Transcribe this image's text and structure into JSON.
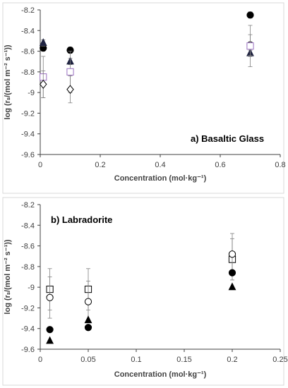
{
  "chart_data": [
    {
      "type": "scatter",
      "panel_label": "a) Basaltic Glass",
      "xlabel": "Concentration (mol·kg⁻¹)",
      "ylabel": "log (rₛ/(mol m⁻² s⁻¹))",
      "xlim": [
        0,
        0.8
      ],
      "ylim": [
        -9.6,
        -8.2
      ],
      "x_ticks": [
        0,
        0.2,
        0.4,
        0.6,
        0.8
      ],
      "x_tick_labels": [
        "0",
        "0.2",
        "0.4",
        "0.6",
        "0.8"
      ],
      "y_ticks": [
        -9.6,
        -9.4,
        -9.2,
        -9.0,
        -8.8,
        -8.6,
        -8.4,
        -8.2
      ],
      "y_tick_labels": [
        "-9.6",
        "-9.4",
        "-9.2",
        "-9",
        "-8.8",
        "-8.6",
        "-8.4",
        "-8.2"
      ],
      "grid": false,
      "legend": "none",
      "series": [
        {
          "marker": "filled-circle",
          "color": "#000000",
          "points": [
            {
              "x": 0.01,
              "y": -8.57,
              "err": 0.03
            },
            {
              "x": 0.1,
              "y": -8.59,
              "err": 0.03
            },
            {
              "x": 0.7,
              "y": -8.25,
              "err": 0.03
            }
          ]
        },
        {
          "marker": "filled-triangle",
          "color": "#1f2340",
          "points": [
            {
              "x": 0.01,
              "y": -8.52,
              "err": 0.03
            },
            {
              "x": 0.1,
              "y": -8.7,
              "err": 0.03
            },
            {
              "x": 0.7,
              "y": -8.62,
              "err": 0.03
            }
          ]
        },
        {
          "marker": "open-circle",
          "color": "#000000",
          "points": [
            {
              "x": 0.7,
              "y": -8.54,
              "err": 0.1
            }
          ]
        },
        {
          "marker": "open-square",
          "color": "#9a70c0",
          "points": [
            {
              "x": 0.01,
              "y": -8.85,
              "err": 0.2
            },
            {
              "x": 0.1,
              "y": -8.8,
              "err": 0.2
            },
            {
              "x": 0.7,
              "y": -8.55,
              "err": 0.2
            }
          ]
        },
        {
          "marker": "open-diamond",
          "color": "#000000",
          "points": [
            {
              "x": 0.01,
              "y": -8.92,
              "err": 0.13
            },
            {
              "x": 0.1,
              "y": -8.97,
              "err": 0.13
            }
          ]
        }
      ]
    },
    {
      "type": "scatter",
      "panel_label": "b) Labradorite",
      "xlabel": "Concentration (mol·kg⁻¹)",
      "ylabel": "log (rₛ/(mol m⁻² s⁻¹))",
      "xlim": [
        0,
        0.25
      ],
      "ylim": [
        -9.6,
        -8.2
      ],
      "x_ticks": [
        0,
        0.05,
        0.1,
        0.15,
        0.2,
        0.25
      ],
      "x_tick_labels": [
        "0",
        "0.05",
        "0.1",
        "0.15",
        "0.2",
        "0.25"
      ],
      "y_ticks": [
        -9.6,
        -9.4,
        -9.2,
        -9.0,
        -8.8,
        -8.6,
        -8.4,
        -8.2
      ],
      "y_tick_labels": [
        "-9.6",
        "-9.4",
        "-9.2",
        "-9",
        "-8.8",
        "-8.6",
        "-8.4",
        "-8.2"
      ],
      "grid": false,
      "legend": "none",
      "series": [
        {
          "marker": "open-square",
          "color": "#000000",
          "points": [
            {
              "x": 0.01,
              "y": -9.02,
              "err": 0.2
            },
            {
              "x": 0.05,
              "y": -9.02,
              "err": 0.2
            },
            {
              "x": 0.2,
              "y": -8.73,
              "err": 0.2
            }
          ]
        },
        {
          "marker": "open-circle",
          "color": "#000000",
          "points": [
            {
              "x": 0.01,
              "y": -9.1,
              "err": 0.2
            },
            {
              "x": 0.05,
              "y": -9.14,
              "err": 0.2
            },
            {
              "x": 0.2,
              "y": -8.68,
              "err": 0.2
            }
          ]
        },
        {
          "marker": "filled-circle",
          "color": "#000000",
          "points": [
            {
              "x": 0.01,
              "y": -9.41,
              "err": 0.0
            },
            {
              "x": 0.05,
              "y": -9.39,
              "err": 0.0
            },
            {
              "x": 0.2,
              "y": -8.86,
              "err": 0.0
            }
          ]
        },
        {
          "marker": "filled-triangle",
          "color": "#000000",
          "points": [
            {
              "x": 0.01,
              "y": -9.52,
              "err": 0.0
            },
            {
              "x": 0.05,
              "y": -9.32,
              "err": 0.0
            },
            {
              "x": 0.2,
              "y": -9.0,
              "err": 0.0
            }
          ]
        }
      ]
    }
  ]
}
